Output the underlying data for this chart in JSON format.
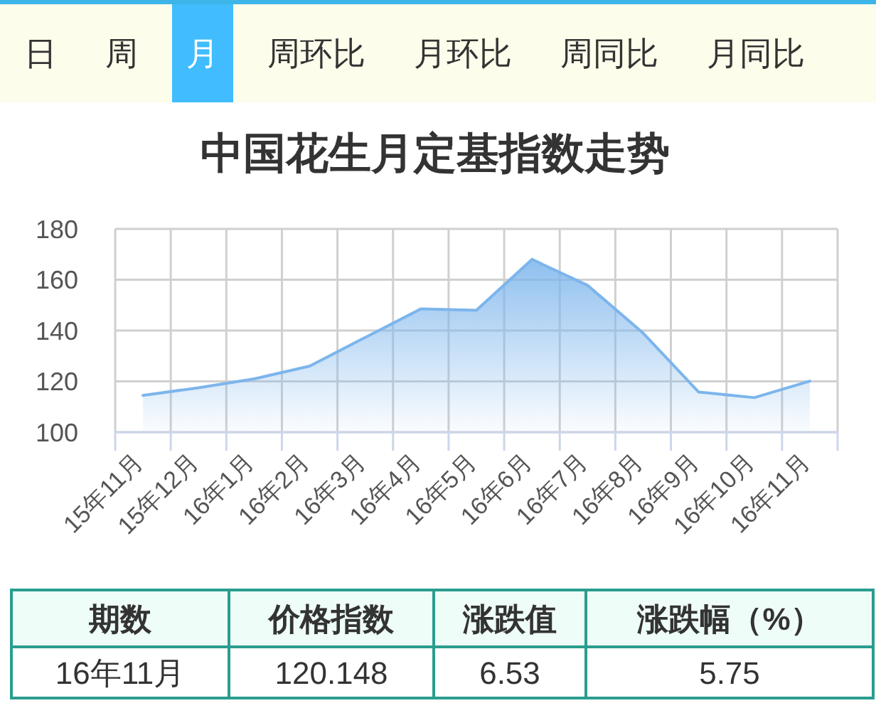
{
  "chart_data": [
    {
      "type": "other",
      "categories": [
        "日",
        "周",
        "月",
        "周环比",
        "月环比",
        "周同比",
        "月同比"
      ],
      "colors": [
        "#fdfdeb",
        "#fdfdeb",
        "#40bcff",
        "#fdfdeb",
        "#fdfdeb",
        "#fdfdeb",
        "#fdfdeb"
      ]
    },
    {
      "type": "area",
      "title": "中国花生月定基指数走势",
      "categories": [
        "15年11月",
        "15年12月",
        "16年1月",
        "16年2月",
        "16年3月",
        "16年4月",
        "16年5月",
        "16年6月",
        "16年7月",
        "16年8月",
        "16年9月",
        "16年10月",
        "16年11月"
      ],
      "series": [
        {
          "color": "#7cb5ec",
          "values": [
            114.5,
            117.5,
            121,
            126,
            137.3,
            148.5,
            148,
            168,
            157.8,
            139,
            115.8,
            113.6,
            120.1
          ]
        }
      ],
      "ylim": [
        100,
        180
      ],
      "yticks": [
        100,
        120,
        140,
        160,
        180
      ],
      "grid": true
    },
    {
      "type": "other",
      "categories": [
        "期数",
        "价格指数",
        "涨跌值",
        "涨跌幅（%）"
      ],
      "annotations": [
        "16年11月",
        "120.148",
        "6.53",
        "5.75"
      ]
    }
  ]
}
